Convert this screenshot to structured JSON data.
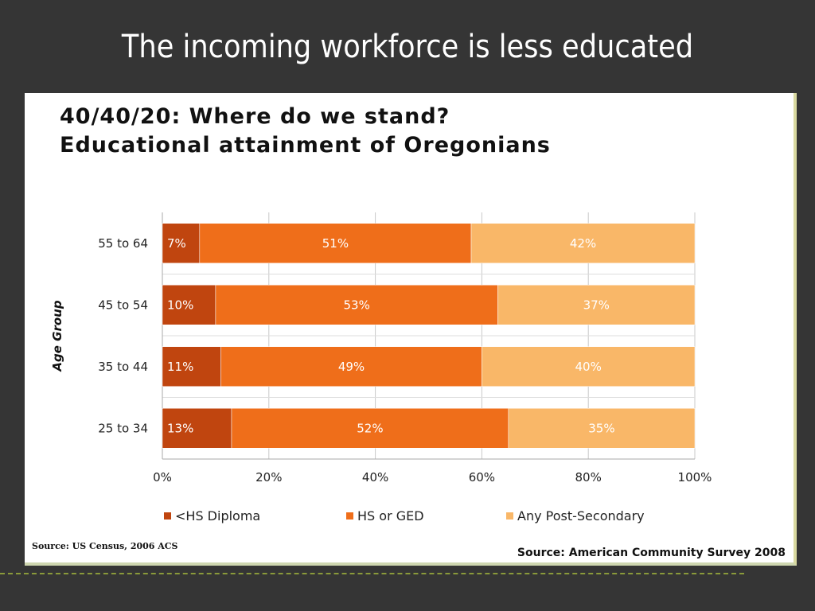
{
  "slide": {
    "title": "The incoming workforce is less educated"
  },
  "chart_data": {
    "type": "bar",
    "orientation": "horizontal",
    "stacked": "percent",
    "title": "40/40/20: Where do we stand?",
    "subtitle": "Educational attainment of Oregonians",
    "ylabel": "Age Group",
    "xlabel": "",
    "categories": [
      "55 to 64",
      "45 to 54",
      "35 to 44",
      "25 to 34"
    ],
    "series": [
      {
        "name": "<HS Diploma",
        "values": [
          7,
          10,
          11,
          13
        ],
        "labels": [
          "7%",
          "10%",
          "11%",
          "13%"
        ],
        "color": "#c0450f"
      },
      {
        "name": "HS or GED",
        "values": [
          51,
          53,
          49,
          52
        ],
        "labels": [
          "51%",
          "53%",
          "49%",
          "52%"
        ],
        "color": "#ef6e1a"
      },
      {
        "name": "Any Post-Secondary",
        "values": [
          42,
          37,
          40,
          35
        ],
        "labels": [
          "42%",
          "37%",
          "40%",
          "35%"
        ],
        "color": "#f9b768"
      }
    ],
    "xticks": [
      "0%",
      "20%",
      "40%",
      "60%",
      "80%",
      "100%"
    ],
    "xlim": [
      0,
      100
    ],
    "grid": true,
    "legend": "bottom"
  },
  "sources": {
    "left": "Source: US Census, 2006 ACS",
    "right": "Source: American Community Survey 2008"
  }
}
